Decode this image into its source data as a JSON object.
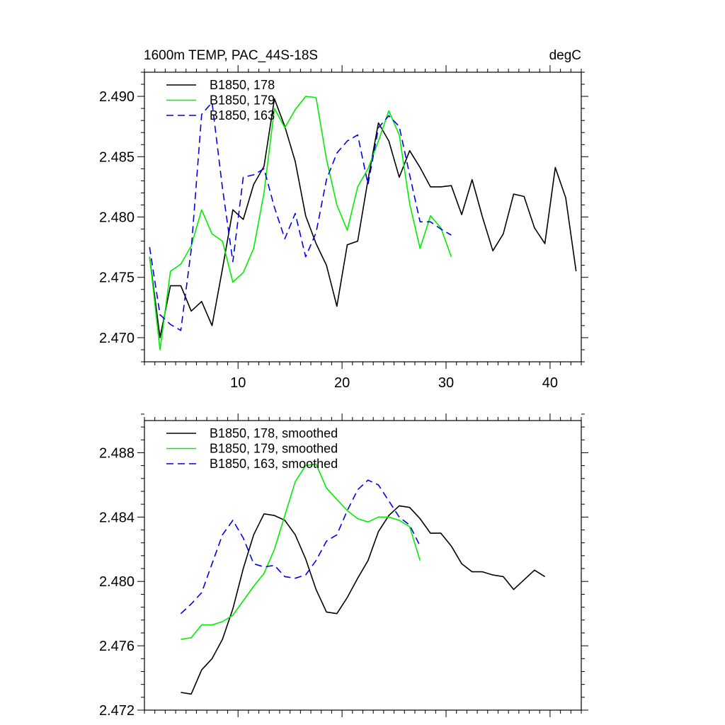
{
  "colors": {
    "s178": "#000000",
    "s179": "#00ee00",
    "s163": "#0000ee"
  },
  "chart_data": [
    {
      "type": "line",
      "title": "1600m TEMP, PAC_44S-18S",
      "units": "degC",
      "xlim": [
        1,
        43
      ],
      "ylim": [
        2.468,
        2.492
      ],
      "xticks": [
        10,
        20,
        30,
        40
      ],
      "xtick_labels": [
        "10",
        "20",
        "30",
        "40"
      ],
      "yticks": [
        2.47,
        2.475,
        2.48,
        2.485,
        2.49
      ],
      "ytick_labels": [
        "2.470",
        "2.475",
        "2.480",
        "2.485",
        "2.490"
      ],
      "legend_position": "top-left",
      "series": [
        {
          "name": "B1850, 178",
          "color": "#000000",
          "dash": "solid",
          "x": [
            1.5,
            2.5,
            3.5,
            4.5,
            5.5,
            6.5,
            7.5,
            8.5,
            9.5,
            10.5,
            11.5,
            12.5,
            13.5,
            14.5,
            15.5,
            16.5,
            17.5,
            18.5,
            19.5,
            20.5,
            21.5,
            22.5,
            23.5,
            24.5,
            25.5,
            26.5,
            27.5,
            28.5,
            29.5,
            30.5,
            31.5,
            32.5,
            33.5,
            34.5,
            35.5,
            36.5,
            37.5,
            38.5,
            39.5,
            40.5,
            41.5,
            42.5
          ],
          "values": [
            2.4767,
            2.47,
            2.4743,
            2.4743,
            2.4722,
            2.473,
            2.471,
            2.4757,
            2.4806,
            2.4798,
            2.4827,
            2.4842,
            2.4898,
            2.4875,
            2.4846,
            2.4801,
            2.4778,
            2.476,
            2.4726,
            2.4777,
            2.478,
            2.4831,
            2.4878,
            2.4863,
            2.4833,
            2.4855,
            2.4841,
            2.4825,
            2.4825,
            2.4826,
            2.4802,
            2.4831,
            2.48,
            2.4772,
            2.4786,
            2.4819,
            2.4817,
            2.4791,
            2.4778,
            2.4841,
            2.4816,
            2.4755
          ]
        },
        {
          "name": "B1850, 179",
          "color": "#00ee00",
          "dash": "solid",
          "x": [
            1.5,
            2.5,
            3.5,
            4.5,
            5.5,
            6.5,
            7.5,
            8.5,
            9.5,
            10.5,
            11.5,
            12.5,
            13.5,
            14.5,
            15.5,
            16.5,
            17.5,
            18.5,
            19.5,
            20.5,
            21.5,
            22.5,
            23.5,
            24.5,
            25.5,
            26.5,
            27.5,
            28.5,
            29.5,
            30.5
          ],
          "values": [
            2.4767,
            2.469,
            2.4755,
            2.4761,
            2.4776,
            2.4806,
            2.4786,
            2.478,
            2.4746,
            2.4754,
            2.4774,
            2.482,
            2.489,
            2.4874,
            2.4889,
            2.49,
            2.4899,
            2.4848,
            2.481,
            2.4789,
            2.4825,
            2.484,
            2.4863,
            2.4888,
            2.4868,
            2.4811,
            2.4774,
            2.4801,
            2.4791,
            2.4767
          ]
        },
        {
          "name": "B1850, 163",
          "color": "#0000ee",
          "dash": "dashed",
          "x": [
            1.5,
            2.5,
            3.5,
            4.5,
            5.5,
            6.5,
            7.5,
            8.5,
            9.5,
            10.5,
            11.5,
            12.5,
            13.5,
            14.5,
            15.5,
            16.5,
            17.5,
            18.5,
            19.5,
            20.5,
            21.5,
            22.5,
            23.5,
            24.5,
            25.5,
            26.5,
            27.5,
            28.5,
            29.5,
            30.5
          ],
          "values": [
            2.4775,
            2.4719,
            2.4711,
            2.4706,
            2.4773,
            2.4885,
            2.4895,
            2.4824,
            2.4763,
            2.4833,
            2.4835,
            2.484,
            2.4808,
            2.4782,
            2.4803,
            2.4767,
            2.4787,
            2.4831,
            2.4853,
            2.4863,
            2.4868,
            2.4827,
            2.4874,
            2.4884,
            2.4875,
            2.4835,
            2.4796,
            2.4796,
            2.479,
            2.4785
          ]
        }
      ]
    },
    {
      "type": "line",
      "xlim": [
        1,
        43
      ],
      "ylim": [
        2.472,
        2.49
      ],
      "xticks": [
        10,
        20,
        30,
        40
      ],
      "yticks": [
        2.472,
        2.476,
        2.48,
        2.484,
        2.488
      ],
      "ytick_labels": [
        "2.472",
        "2.476",
        "2.480",
        "2.484",
        "2.488"
      ],
      "legend_position": "top-left",
      "series": [
        {
          "name": "B1850, 178, smoothed",
          "color": "#000000",
          "dash": "solid",
          "x": [
            4.5,
            5.5,
            6.5,
            7.5,
            8.5,
            9.5,
            10.5,
            11.5,
            12.5,
            13.5,
            14.5,
            15.5,
            16.5,
            17.5,
            18.5,
            19.5,
            20.5,
            21.5,
            22.5,
            23.5,
            24.5,
            25.5,
            26.5,
            27.5,
            28.5,
            29.5,
            30.5,
            31.5,
            32.5,
            33.5,
            34.5,
            35.5,
            36.5,
            37.5,
            38.5,
            39.5
          ],
          "values": [
            2.4731,
            2.473,
            2.4745,
            2.4752,
            2.4764,
            2.4783,
            2.4808,
            2.4829,
            2.4842,
            2.4841,
            2.4838,
            2.4829,
            2.4814,
            2.4795,
            2.4781,
            2.478,
            2.479,
            2.4802,
            2.4813,
            2.4831,
            2.4841,
            2.4847,
            2.4846,
            2.4839,
            2.483,
            2.483,
            2.4822,
            2.4811,
            2.4806,
            2.4806,
            2.4804,
            2.4803,
            2.4795,
            2.4801,
            2.4807,
            2.4803
          ]
        },
        {
          "name": "B1850, 179, smoothed",
          "color": "#00ee00",
          "dash": "solid",
          "x": [
            4.5,
            5.5,
            6.5,
            7.5,
            8.5,
            9.5,
            10.5,
            11.5,
            12.5,
            13.5,
            14.5,
            15.5,
            16.5,
            17.5,
            18.5,
            19.5,
            20.5,
            21.5,
            22.5,
            23.5,
            24.5,
            25.5,
            26.5,
            27.5
          ],
          "values": [
            2.4764,
            2.4765,
            2.4773,
            2.4773,
            2.4775,
            2.4779,
            2.4788,
            2.4797,
            2.4805,
            2.482,
            2.4841,
            2.4862,
            2.4872,
            2.4873,
            2.4858,
            2.4851,
            2.4844,
            2.4839,
            2.4837,
            2.484,
            2.484,
            2.4838,
            2.4834,
            2.4813
          ]
        },
        {
          "name": "B1850, 163, smoothed",
          "color": "#0000ee",
          "dash": "dashed",
          "x": [
            4.5,
            5.5,
            6.5,
            7.5,
            8.5,
            9.5,
            10.5,
            11.5,
            12.5,
            13.5,
            14.5,
            15.5,
            16.5,
            17.5,
            18.5,
            19.5,
            20.5,
            21.5,
            22.5,
            23.5,
            24.5,
            25.5,
            26.5,
            27.5
          ],
          "values": [
            2.478,
            2.4786,
            2.4793,
            2.4811,
            2.4829,
            2.4838,
            2.4827,
            2.4811,
            2.4809,
            2.481,
            2.4803,
            2.4802,
            2.4804,
            2.4813,
            2.4825,
            2.4829,
            2.4844,
            2.4857,
            2.4863,
            2.486,
            2.485,
            2.484,
            2.4835,
            2.4822
          ]
        }
      ]
    }
  ]
}
